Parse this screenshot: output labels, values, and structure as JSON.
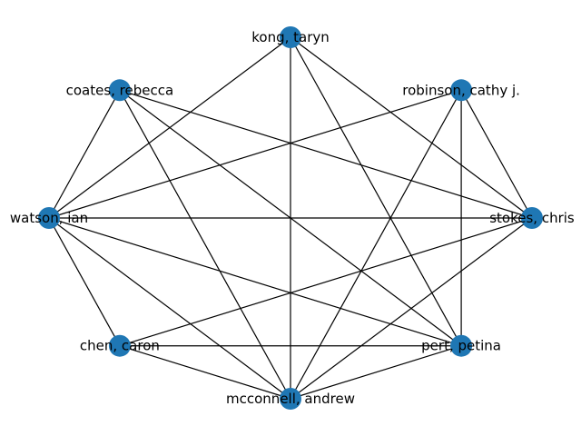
{
  "graph": {
    "node_color": "#1f77b4",
    "edge_color": "#000000",
    "nodes": [
      {
        "id": "kong",
        "label": "kong, taryn"
      },
      {
        "id": "robinson",
        "label": "robinson, cathy j."
      },
      {
        "id": "stokes",
        "label": "stokes, chris"
      },
      {
        "id": "pert",
        "label": "pert, petina"
      },
      {
        "id": "mcconnell",
        "label": "mcconnell, andrew"
      },
      {
        "id": "chen",
        "label": "chen, caron"
      },
      {
        "id": "watson",
        "label": "watson, ian"
      },
      {
        "id": "coates",
        "label": "coates, rebecca"
      }
    ],
    "edges": [
      [
        "kong",
        "watson"
      ],
      [
        "kong",
        "mcconnell"
      ],
      [
        "kong",
        "pert"
      ],
      [
        "kong",
        "stokes"
      ],
      [
        "coates",
        "watson"
      ],
      [
        "coates",
        "stokes"
      ],
      [
        "coates",
        "pert"
      ],
      [
        "coates",
        "mcconnell"
      ],
      [
        "robinson",
        "watson"
      ],
      [
        "robinson",
        "stokes"
      ],
      [
        "robinson",
        "pert"
      ],
      [
        "robinson",
        "mcconnell"
      ],
      [
        "watson",
        "stokes"
      ],
      [
        "watson",
        "chen"
      ],
      [
        "watson",
        "mcconnell"
      ],
      [
        "watson",
        "pert"
      ],
      [
        "stokes",
        "chen"
      ],
      [
        "stokes",
        "mcconnell"
      ],
      [
        "chen",
        "pert"
      ],
      [
        "chen",
        "mcconnell"
      ],
      [
        "mcconnell",
        "pert"
      ]
    ]
  }
}
